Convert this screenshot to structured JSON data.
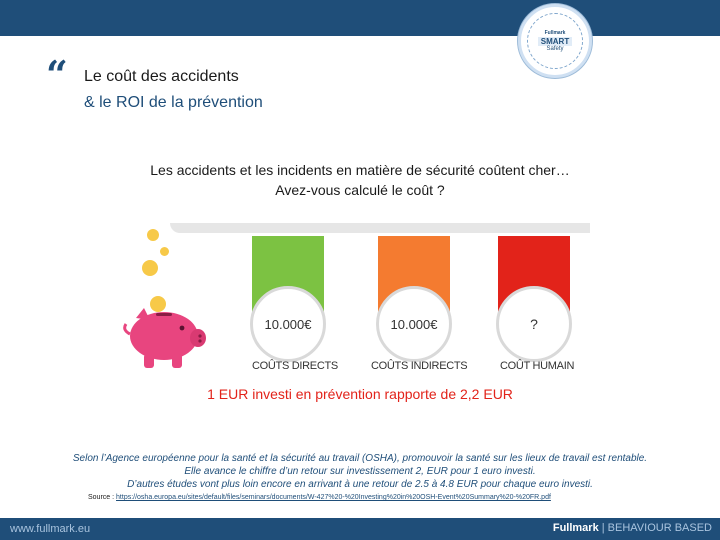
{
  "header": {
    "badge": {
      "brand": "Fullmark",
      "line1": "SMART",
      "line2": "Safety"
    }
  },
  "title": {
    "quote_mark": "“",
    "line1": "Le coût des accidents",
    "line2": "& le ROI de la prévention"
  },
  "intro": {
    "line1": "Les accidents et les incidents en matière de sécurité coûtent cher…",
    "line2": "Avez-vous calculé le coût ?"
  },
  "infographic": {
    "columns": [
      {
        "value": "10.000€",
        "label": "COÛTS DIRECTS",
        "color": "#7cc242"
      },
      {
        "value": "10.000€",
        "label": "COÛTS INDIRECTS",
        "color": "#f47b30"
      },
      {
        "value": "?",
        "label": "COÛT HUMAIN",
        "color": "#e2231a"
      }
    ]
  },
  "roi": "1 EUR investi en prévention rapporte de 2,2 EUR",
  "body": {
    "line1": "Selon l’Agence européenne pour la santé et la sécurité au travail (OSHA), promouvoir la santé sur les lieux de travail est rentable.",
    "line2": "Elle avance le chiffre d’un retour sur investissement 2, EUR pour 1 euro investi.",
    "line3": "D’autres études vont plus loin encore en arrivant à une retour de 2.5 à 4.8 EUR pour chaque euro investi."
  },
  "source": {
    "label": "Source :",
    "url": "https://osha.europa.eu/sites/default/files/seminars/documents/W-427%20-%20Investing%20in%20OSH-Event%20Summary%20-%20FR.pdf"
  },
  "footer": {
    "url": "www.fullmark.eu",
    "brand": "Fullmark",
    "tagline": " | BEHAVIOUR BASED"
  },
  "colors": {
    "primary": "#1f4e79",
    "accent": "#e2231a",
    "pig": "#e8457f",
    "coin": "#f7c948"
  }
}
